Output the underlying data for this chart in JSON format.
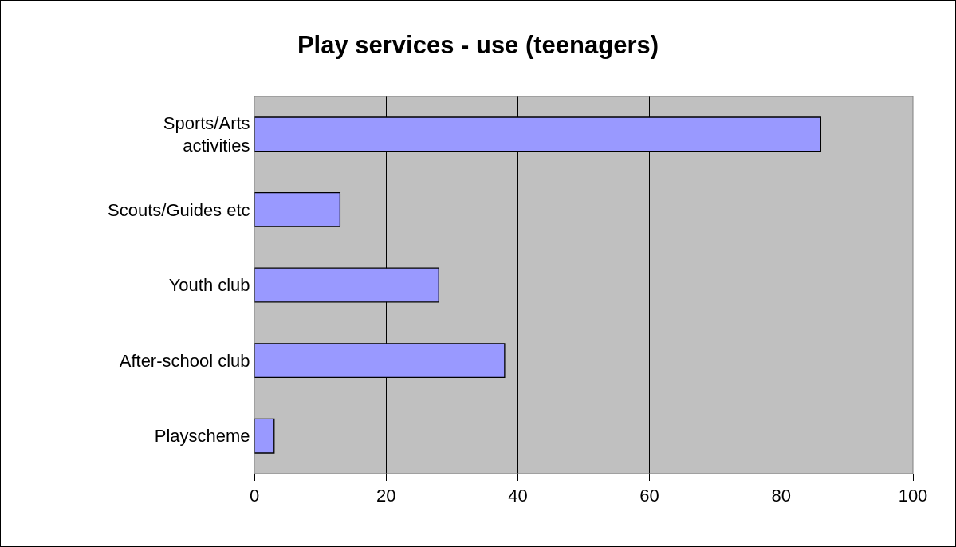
{
  "chart_data": {
    "type": "bar",
    "orientation": "horizontal",
    "title": "Play services - use (teenagers)",
    "categories": [
      "Sports/Arts activities",
      "Scouts/Guides etc",
      "Youth club",
      "After-school club",
      "Playscheme"
    ],
    "values": [
      86,
      13,
      28,
      38,
      3
    ],
    "color": "#9999ff",
    "xlim": [
      0,
      100
    ],
    "xticks": [
      0,
      20,
      40,
      60,
      80,
      100
    ],
    "grid": "x"
  }
}
